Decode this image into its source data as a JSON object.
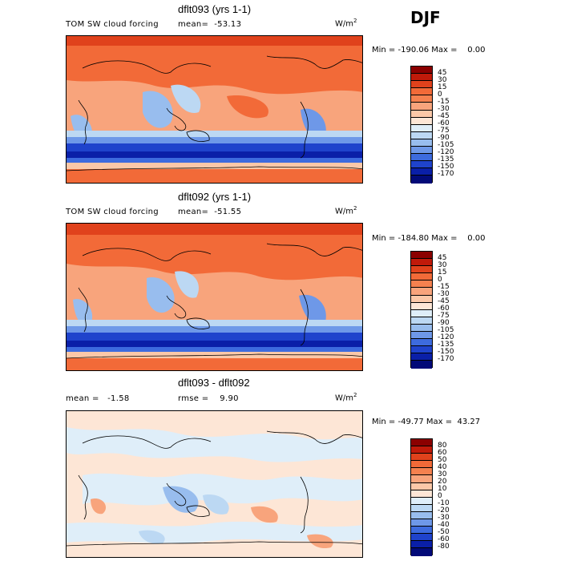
{
  "season": "DJF",
  "panels": [
    {
      "title": "dflt093 (yrs 1-1)",
      "variable": "TOM SW cloud forcing",
      "stat1": "mean=  -53.13",
      "units": "W/m",
      "units_exp": "2",
      "minmax": "Min = -190.06 Max =    0.00",
      "levels": [
        "45",
        "30",
        "15",
        "0",
        "-15",
        "-30",
        "-45",
        "-60",
        "-75",
        "-90",
        "-105",
        "-120",
        "-135",
        "-150",
        "-170"
      ],
      "colors": [
        "#8b0000",
        "#c01a0a",
        "#e0421c",
        "#f26a38",
        "#f5814f",
        "#f8a47c",
        "#fbc8a8",
        "#fde6d6",
        "#dfeef9",
        "#bcd8f3",
        "#98bdee",
        "#6e98e8",
        "#3d6bde",
        "#1f43cc",
        "#0a1fa8",
        "#020a78"
      ]
    },
    {
      "title": "dflt092 (yrs 1-1)",
      "variable": "TOM SW cloud forcing",
      "stat1": "mean=  -51.55",
      "units": "W/m",
      "units_exp": "2",
      "minmax": "Min = -184.80 Max =    0.00",
      "levels": [
        "45",
        "30",
        "15",
        "0",
        "-15",
        "-30",
        "-45",
        "-60",
        "-75",
        "-90",
        "-105",
        "-120",
        "-135",
        "-150",
        "-170"
      ],
      "colors": [
        "#8b0000",
        "#c01a0a",
        "#e0421c",
        "#f26a38",
        "#f5814f",
        "#f8a47c",
        "#fbc8a8",
        "#fde6d6",
        "#dfeef9",
        "#bcd8f3",
        "#98bdee",
        "#6e98e8",
        "#3d6bde",
        "#1f43cc",
        "#0a1fa8",
        "#020a78"
      ]
    },
    {
      "title": "dflt093 - dflt092",
      "stat1": "mean =   -1.58",
      "stat2": "rmse =    9.90",
      "units": "W/m",
      "units_exp": "2",
      "minmax": "Min = -49.77 Max =  43.27",
      "levels": [
        "80",
        "60",
        "50",
        "40",
        "30",
        "20",
        "10",
        "0",
        "-10",
        "-20",
        "-30",
        "-40",
        "-50",
        "-60",
        "-80"
      ],
      "colors": [
        "#8b0000",
        "#c01a0a",
        "#e0421c",
        "#f26a38",
        "#f5814f",
        "#f8a47c",
        "#fbc8a8",
        "#fde6d6",
        "#dfeef9",
        "#bcd8f3",
        "#98bdee",
        "#6e98e8",
        "#3d6bde",
        "#1f43cc",
        "#0a1fa8",
        "#020a78"
      ]
    }
  ]
}
